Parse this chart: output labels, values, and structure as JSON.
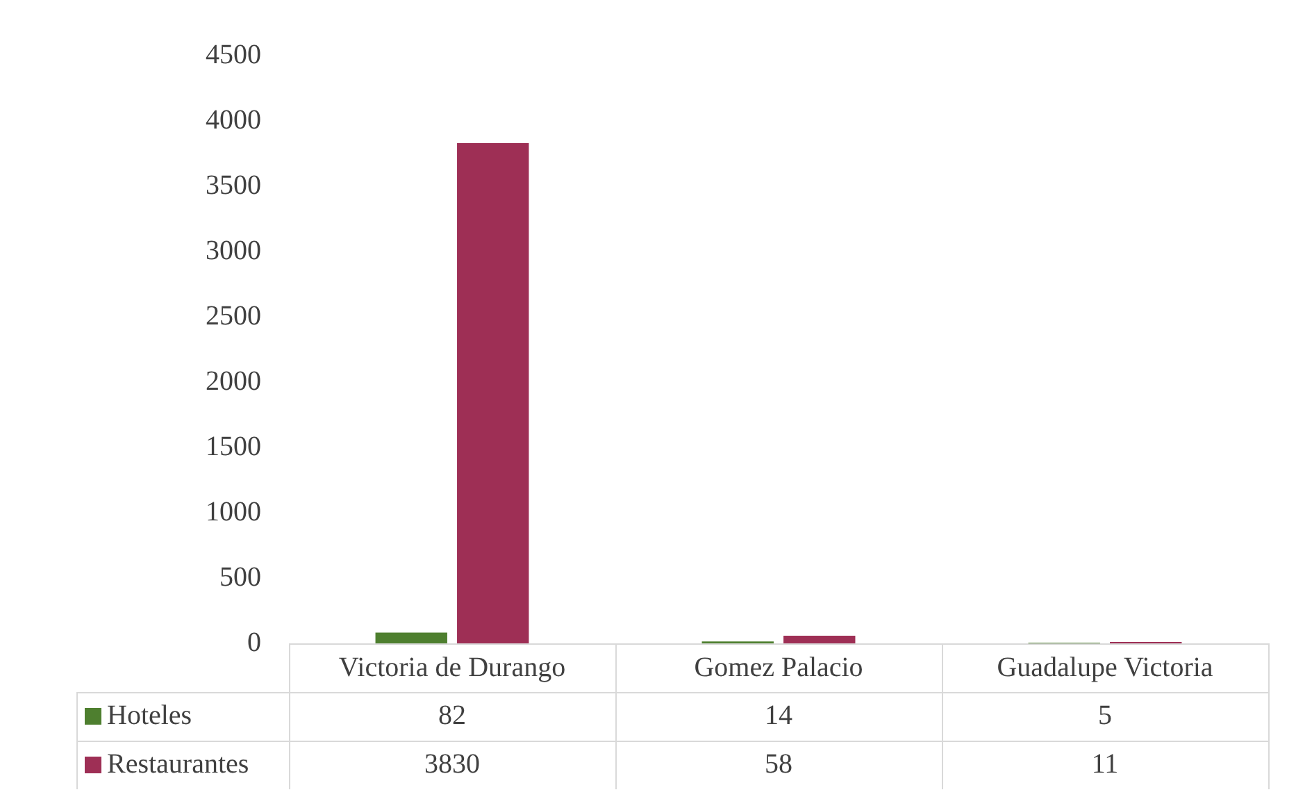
{
  "chart_data": {
    "type": "bar",
    "categories": [
      "Victoria de Durango",
      "Gomez Palacio",
      "Guadalupe Victoria"
    ],
    "series": [
      {
        "name": "Hoteles",
        "color": "#4e7f2f",
        "values": [
          82,
          14,
          5
        ]
      },
      {
        "name": "Restaurantes",
        "color": "#9e2f55",
        "values": [
          3830,
          58,
          11
        ]
      }
    ],
    "ylim": [
      0,
      4500
    ],
    "yticks": [
      0,
      500,
      1000,
      1500,
      2000,
      2500,
      3000,
      3500,
      4000,
      4500
    ],
    "grid": false,
    "legend": "bottom",
    "data_labels": true
  }
}
